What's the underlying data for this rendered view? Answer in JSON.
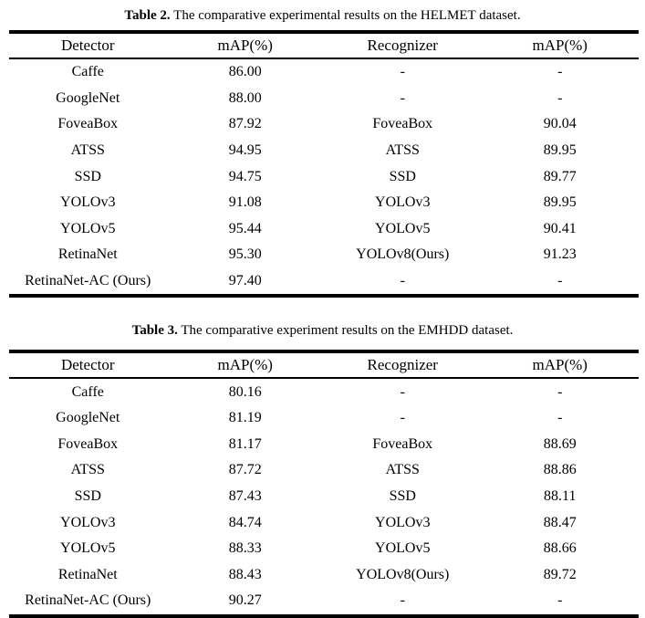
{
  "page": {
    "background_color": "#ffffff",
    "text_color": "#000000"
  },
  "tables": [
    {
      "caption_label": "Table 2.",
      "caption_text": " The comparative experimental results on the HELMET dataset.",
      "headers": [
        "Detector",
        "mAP(%)",
        "Recognizer",
        "mAP(%)"
      ],
      "rows": [
        [
          "Caffe",
          "86.00",
          "-",
          "-"
        ],
        [
          "GoogleNet",
          "88.00",
          "-",
          "-"
        ],
        [
          "FoveaBox",
          "87.92",
          "FoveaBox",
          "90.04"
        ],
        [
          "ATSS",
          "94.95",
          "ATSS",
          "89.95"
        ],
        [
          "SSD",
          "94.75",
          "SSD",
          "89.77"
        ],
        [
          "YOLOv3",
          "91.08",
          "YOLOv3",
          "89.95"
        ],
        [
          "YOLOv5",
          "95.44",
          "YOLOv5",
          "90.41"
        ],
        [
          "RetinaNet",
          "95.30",
          "YOLOv8(Ours)",
          "91.23"
        ],
        [
          "RetinaNet-AC (Ours)",
          "97.40",
          "-",
          "-"
        ]
      ]
    },
    {
      "caption_label": "Table 3.",
      "caption_text": " The comparative experiment results on the EMHDD dataset.",
      "headers": [
        "Detector",
        "mAP(%)",
        "Recognizer",
        "mAP(%)"
      ],
      "rows": [
        [
          "Caffe",
          "80.16",
          "-",
          "-"
        ],
        [
          "GoogleNet",
          "81.19",
          "-",
          "-"
        ],
        [
          "FoveaBox",
          "81.17",
          "FoveaBox",
          "88.69"
        ],
        [
          "ATSS",
          "87.72",
          "ATSS",
          "88.86"
        ],
        [
          "SSD",
          "87.43",
          "SSD",
          "88.11"
        ],
        [
          "YOLOv3",
          "84.74",
          "YOLOv3",
          "88.47"
        ],
        [
          "YOLOv5",
          "88.33",
          "YOLOv5",
          "88.66"
        ],
        [
          "RetinaNet",
          "88.43",
          "YOLOv8(Ours)",
          "89.72"
        ],
        [
          "RetinaNet-AC (Ours)",
          "90.27",
          "-",
          "-"
        ]
      ]
    }
  ]
}
